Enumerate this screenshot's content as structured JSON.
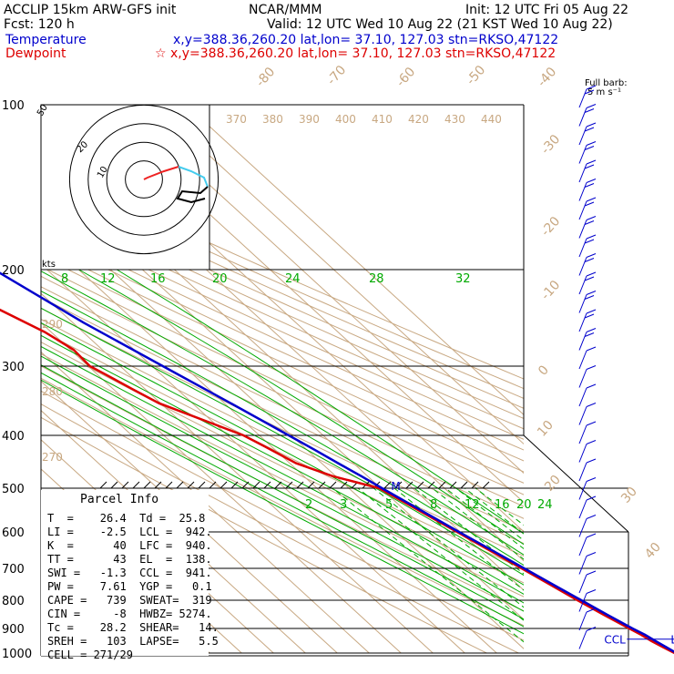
{
  "header": {
    "model": "ACCLIP 15km ARW-GFS init",
    "org": "NCAR/MMM",
    "init": "Init: 12 UTC Fri 05 Aug 22",
    "fcst": "Fcst:  120 h",
    "valid": "Valid: 12 UTC Wed 10 Aug 22 (21 KST Wed 10 Aug 22)",
    "temp_label": "Temperature",
    "temp_info": "x,y=388.36,260.20   lat,lon= 37.10, 127.03  stn=RKSO,47122",
    "dew_label": "Dewpoint",
    "dew_info": "☆ x,y=388.36,260.20   lat,lon= 37.10, 127.03  stn=RKSO,47122",
    "barb_note_1": "Full barb:",
    "barb_note_2": "5 m s⁻¹"
  },
  "colors": {
    "temperature": "#0000cc",
    "dewpoint": "#dd0000",
    "isotherm": "#c8a882",
    "dry_adiabat": "#c8a882",
    "moist_adiabat": "#00aa00",
    "mixing_ratio": "#00aa00",
    "hodo_line": "#ee2222",
    "hodo_cyan": "#44ccee"
  },
  "chart_data": {
    "type": "skew-t",
    "pressure_levels": [
      "100",
      "200",
      "300",
      "400",
      "500",
      "600",
      "700",
      "800",
      "900",
      "1000"
    ],
    "isotherm_labels": [
      "-80",
      "-70",
      "-60",
      "-50",
      "-40",
      "-30",
      "-20",
      "-10",
      "0",
      "10",
      "20",
      "30",
      "40"
    ],
    "theta_labels_top": [
      "370",
      "380",
      "390",
      "400",
      "410",
      "420",
      "430",
      "440"
    ],
    "theta_labels_left": [
      "290",
      "280",
      "270"
    ],
    "theta_e_labels": [
      "8",
      "12",
      "16",
      "20",
      "24",
      "28",
      "32"
    ],
    "mixing_ratio_labels": [
      "2",
      "3",
      "5",
      "8",
      "12",
      "16",
      "20",
      "24"
    ],
    "temperature_profile": [
      [
        1000,
        26.4
      ],
      [
        975,
        25.2
      ],
      [
        950,
        24.0
      ],
      [
        925,
        22.8
      ],
      [
        900,
        21.0
      ],
      [
        850,
        17.8
      ],
      [
        800,
        14.6
      ],
      [
        750,
        11.2
      ],
      [
        700,
        7.6
      ],
      [
        650,
        3.8
      ],
      [
        600,
        -0.4
      ],
      [
        550,
        -4.8
      ],
      [
        500,
        -9.6
      ],
      [
        475,
        -12.0
      ],
      [
        450,
        -14.8
      ],
      [
        425,
        -17.6
      ],
      [
        400,
        -20.8
      ],
      [
        350,
        -28.0
      ],
      [
        300,
        -36.6
      ],
      [
        250,
        -46.6
      ],
      [
        200,
        -56.5
      ],
      [
        175,
        -62.5
      ],
      [
        150,
        -68.5
      ],
      [
        140,
        -71.5
      ],
      [
        125,
        -73.0
      ],
      [
        112,
        -72.0
      ],
      [
        100,
        -69.0
      ]
    ],
    "dewpoint_profile": [
      [
        1000,
        25.8
      ],
      [
        975,
        24.2
      ],
      [
        950,
        22.7
      ],
      [
        925,
        21.6
      ],
      [
        900,
        20.0
      ],
      [
        850,
        16.7
      ],
      [
        800,
        13.4
      ],
      [
        750,
        10.2
      ],
      [
        700,
        6.8
      ],
      [
        650,
        3.0
      ],
      [
        600,
        -1.0
      ],
      [
        550,
        -5.5
      ],
      [
        500,
        -10.5
      ],
      [
        475,
        -21.0
      ],
      [
        450,
        -28.0
      ],
      [
        420,
        -32.0
      ],
      [
        400,
        -35.0
      ],
      [
        350,
        -50.5
      ],
      [
        330,
        -54.0
      ],
      [
        310,
        -57.5
      ],
      [
        300,
        -59.5
      ],
      [
        280,
        -59.0
      ],
      [
        260,
        -62.0
      ],
      [
        230,
        -70.5
      ],
      [
        210,
        -78.0
      ],
      [
        200,
        -76.5
      ],
      [
        175,
        -80.5
      ],
      [
        160,
        -82.5
      ],
      [
        140,
        -82.0
      ],
      [
        125,
        -82.0
      ],
      [
        110,
        -83.5
      ],
      [
        100,
        -83.5
      ]
    ],
    "markers": {
      "EL": 138,
      "M": 500,
      "CCL": 941,
      "LCL": 942,
      "LFC": 940
    },
    "wind_barbs_label": "kts",
    "hodograph": {
      "rings": [
        "10",
        "20",
        "30",
        "40"
      ],
      "corner_label": "50",
      "units": "kts"
    }
  },
  "parcel_info": {
    "title": "Parcel Info",
    "rows": [
      "T  =    26.4  Td =  25.8",
      "LI =    -2.5  LCL =  942.",
      "K  =      40  LFC =  940.",
      "TT =      43  EL  =  138.",
      "SWI =   -1.3  CCL =  941.",
      "PW =    7.61  YGP =   0.1",
      "CAPE =   739  SWEAT=  319",
      "CIN =     -8  HWBZ= 5274.",
      "Tc =    28.2  SHEAR=   14.",
      "SREH =   103  LAPSE=   5.5",
      "CELL = 271/29"
    ]
  }
}
